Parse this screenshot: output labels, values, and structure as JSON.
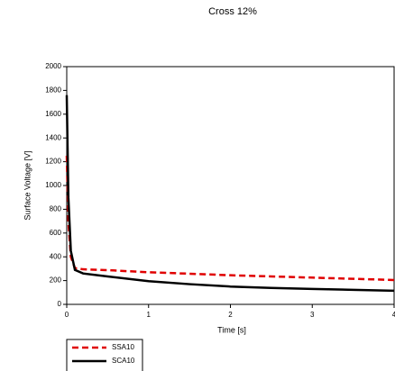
{
  "chart_data": {
    "type": "line",
    "title": "Cross 12%",
    "x_label": "Time [s]",
    "y_label": "Surface Voltage [V]",
    "x": [
      0,
      0.02,
      0.05,
      0.1,
      0.2,
      0.5,
      1,
      1.5,
      2,
      2.5,
      3,
      3.5,
      4
    ],
    "series": [
      {
        "name": "SSA10",
        "color": "#e00000",
        "dashed": true,
        "values": [
          1250,
          700,
          400,
          305,
          295,
          288,
          270,
          258,
          245,
          235,
          225,
          215,
          205
        ]
      },
      {
        "name": "SCA10",
        "color": "#000000",
        "dashed": false,
        "values": [
          1760,
          900,
          450,
          290,
          260,
          235,
          195,
          170,
          150,
          138,
          130,
          122,
          115
        ]
      }
    ],
    "xlim": [
      0,
      4
    ],
    "xticks": [
      0,
      1,
      2,
      3,
      4
    ],
    "ylim": [
      0,
      2000
    ],
    "yticks": [
      0,
      200,
      400,
      600,
      800,
      1000,
      1200,
      1400,
      1600,
      1800,
      2000
    ],
    "grid": false
  }
}
